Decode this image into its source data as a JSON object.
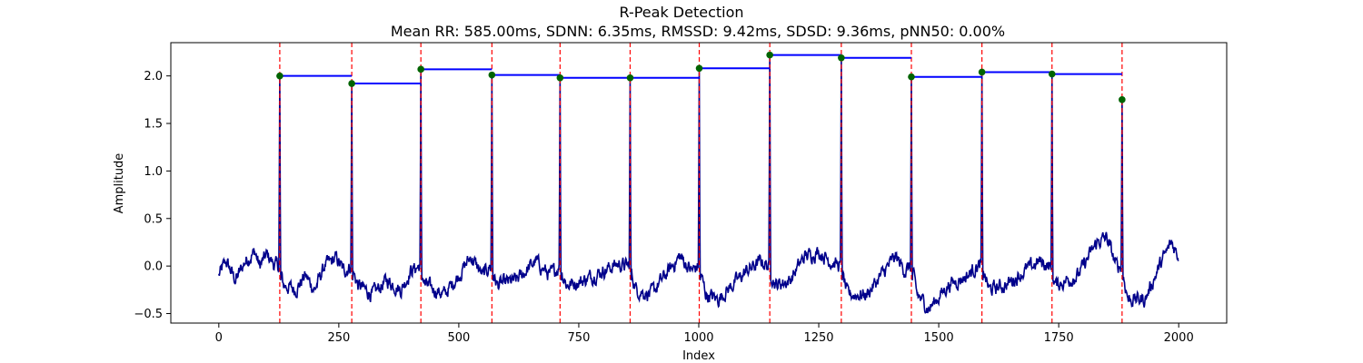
{
  "chart_data": {
    "type": "line",
    "title": "R-Peak Detection",
    "subtitle": "Mean RR: 585.00ms, SDNN: 6.35ms, RMSSD: 9.42ms, SDSD: 9.36ms, pNN50: 0.00%",
    "xlabel": "Index",
    "ylabel": "Amplitude",
    "xlim": [
      -100,
      2100
    ],
    "ylim": [
      -0.6,
      2.35
    ],
    "x_ticks": [
      0,
      250,
      500,
      750,
      1000,
      1250,
      1500,
      1750,
      2000
    ],
    "y_ticks": [
      -0.5,
      0.0,
      0.5,
      1.0,
      1.5,
      2.0
    ],
    "x_tick_labels": [
      "0",
      "250",
      "500",
      "750",
      "1000",
      "1250",
      "1500",
      "1750",
      "2000"
    ],
    "y_tick_labels": [
      "−0.5",
      "0.0",
      "0.5",
      "1.0",
      "1.5",
      "2.0"
    ],
    "grid": false,
    "signal": {
      "n_samples": 2000,
      "color": "#00008b",
      "baseline_profile": [
        [
          0,
          -0.1
        ],
        [
          15,
          0.05
        ],
        [
          35,
          -0.15
        ],
        [
          55,
          0.05
        ],
        [
          75,
          0.15
        ],
        [
          85,
          0.0
        ],
        [
          100,
          0.12
        ],
        [
          115,
          0.02
        ],
        [
          124,
          0.0
        ],
        [
          135,
          -0.2
        ],
        [
          160,
          -0.25
        ],
        [
          180,
          -0.1
        ],
        [
          200,
          -0.25
        ],
        [
          220,
          0.0
        ],
        [
          245,
          0.08
        ],
        [
          260,
          -0.05
        ],
        [
          275,
          0.0
        ],
        [
          290,
          -0.2
        ],
        [
          320,
          -0.3
        ],
        [
          350,
          -0.15
        ],
        [
          380,
          -0.25
        ],
        [
          400,
          -0.05
        ],
        [
          418,
          0.0
        ],
        [
          430,
          -0.2
        ],
        [
          470,
          -0.3
        ],
        [
          500,
          -0.1
        ],
        [
          525,
          0.1
        ],
        [
          550,
          -0.1
        ],
        [
          565,
          0.0
        ],
        [
          580,
          -0.2
        ],
        [
          620,
          -0.15
        ],
        [
          660,
          0.05
        ],
        [
          690,
          -0.1
        ],
        [
          710,
          0.0
        ],
        [
          725,
          -0.2
        ],
        [
          760,
          -0.15
        ],
        [
          800,
          -0.05
        ],
        [
          830,
          0.02
        ],
        [
          855,
          0.0
        ],
        [
          870,
          -0.25
        ],
        [
          900,
          -0.3
        ],
        [
          930,
          -0.1
        ],
        [
          960,
          0.1
        ],
        [
          985,
          -0.05
        ],
        [
          1000,
          0.0
        ],
        [
          1015,
          -0.3
        ],
        [
          1040,
          -0.35
        ],
        [
          1070,
          -0.2
        ],
        [
          1100,
          -0.05
        ],
        [
          1130,
          0.05
        ],
        [
          1145,
          0.0
        ],
        [
          1160,
          -0.2
        ],
        [
          1190,
          -0.15
        ],
        [
          1220,
          0.1
        ],
        [
          1250,
          0.15
        ],
        [
          1275,
          0.05
        ],
        [
          1295,
          0.0
        ],
        [
          1310,
          -0.3
        ],
        [
          1350,
          -0.3
        ],
        [
          1380,
          -0.1
        ],
        [
          1410,
          0.1
        ],
        [
          1430,
          -0.05
        ],
        [
          1443,
          0.0
        ],
        [
          1455,
          -0.3
        ],
        [
          1480,
          -0.45
        ],
        [
          1520,
          -0.2
        ],
        [
          1560,
          -0.1
        ],
        [
          1580,
          0.0
        ],
        [
          1590,
          0.0
        ],
        [
          1605,
          -0.25
        ],
        [
          1640,
          -0.2
        ],
        [
          1680,
          -0.05
        ],
        [
          1710,
          0.05
        ],
        [
          1730,
          0.0
        ],
        [
          1745,
          -0.2
        ],
        [
          1790,
          -0.1
        ],
        [
          1830,
          0.25
        ],
        [
          1850,
          0.3
        ],
        [
          1870,
          0.0
        ],
        [
          1880,
          0.0
        ],
        [
          1895,
          -0.35
        ],
        [
          1930,
          -0.35
        ],
        [
          1960,
          0.0
        ],
        [
          1985,
          0.25
        ],
        [
          2000,
          0.1
        ]
      ]
    },
    "r_peaks": {
      "indices": [
        127,
        277,
        421,
        569,
        711,
        857,
        1001,
        1148,
        1297,
        1443,
        1590,
        1736,
        1882
      ],
      "amplitudes": [
        2.0,
        1.92,
        2.07,
        2.01,
        1.98,
        1.98,
        2.08,
        2.22,
        2.19,
        1.99,
        2.04,
        2.02,
        1.75
      ],
      "marker_color": "#006400",
      "line_color": "#ff0000"
    },
    "rr_segments": {
      "color": "#0000ff",
      "segments": [
        {
          "x0": 127,
          "x1": 277,
          "y": 2.0
        },
        {
          "x0": 277,
          "x1": 421,
          "y": 1.92
        },
        {
          "x0": 421,
          "x1": 569,
          "y": 2.07
        },
        {
          "x0": 569,
          "x1": 711,
          "y": 2.01
        },
        {
          "x0": 711,
          "x1": 857,
          "y": 1.98
        },
        {
          "x0": 857,
          "x1": 1001,
          "y": 1.98
        },
        {
          "x0": 1001,
          "x1": 1148,
          "y": 2.08
        },
        {
          "x0": 1148,
          "x1": 1297,
          "y": 2.22
        },
        {
          "x0": 1297,
          "x1": 1443,
          "y": 2.19
        },
        {
          "x0": 1443,
          "x1": 1590,
          "y": 1.99
        },
        {
          "x0": 1590,
          "x1": 1736,
          "y": 2.04
        },
        {
          "x0": 1736,
          "x1": 1882,
          "y": 2.02
        }
      ]
    }
  }
}
